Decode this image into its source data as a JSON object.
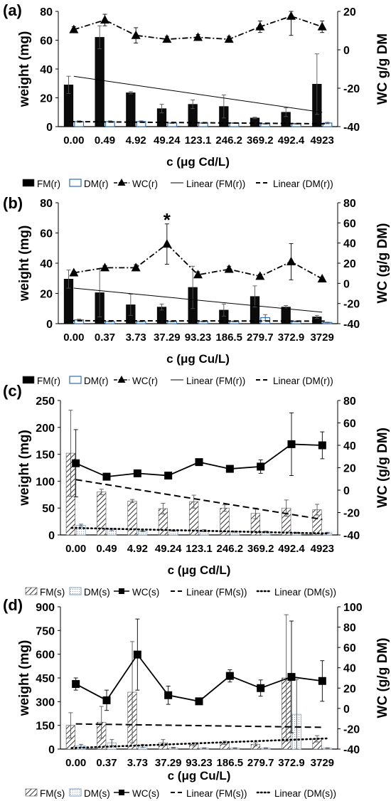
{
  "chart_data": [
    {
      "panel": "(a)",
      "type": "bar",
      "bar_style": "solid",
      "categories": [
        "0.00",
        "0.49",
        "4.92",
        "49.24",
        "123.1",
        "246.2",
        "369.2",
        "492.4",
        "4923"
      ],
      "xlabel": "c (μg Cd/L)",
      "ylabel": "weight (mg)",
      "y2label": "WC g/g DM",
      "ylim": [
        0,
        80
      ],
      "yticks": [
        0,
        20,
        40,
        60,
        80
      ],
      "y2lim": [
        -40,
        20
      ],
      "y2ticks": [
        -40,
        -20,
        0,
        20
      ],
      "series": [
        {
          "name": "FM(r)",
          "kind": "bar",
          "values": [
            29,
            62,
            23.5,
            12.5,
            15.5,
            14,
            6,
            10,
            29.5
          ],
          "err": [
            6,
            8,
            0.8,
            3,
            3,
            8,
            0.5,
            3,
            21
          ]
        },
        {
          "name": "DM(r)",
          "kind": "bar",
          "values": [
            3.5,
            3.5,
            3.5,
            2.5,
            2.5,
            2.5,
            2,
            2,
            2.5
          ],
          "err": [
            0.5,
            0.5,
            0.5,
            0.3,
            0.3,
            0.3,
            0.3,
            0.3,
            0.5
          ]
        },
        {
          "name": "WC(r)",
          "kind": "line",
          "axis": "y2",
          "values": [
            10.5,
            15.5,
            7.5,
            5.5,
            6.5,
            5.5,
            12,
            17.5,
            12
          ],
          "err": [
            1.5,
            3,
            4,
            1.5,
            1.5,
            1.5,
            3,
            10,
            3
          ]
        }
      ],
      "trendlines": [
        {
          "name": "Linear (FM(r))",
          "of": "FM(r)"
        },
        {
          "name": "Linear (DM(r))",
          "of": "DM(r)"
        }
      ],
      "legend": [
        "FM(r)",
        "DM(r)",
        "WC(r)",
        "Linear (FM(r))",
        "Linear (DM(r))"
      ],
      "annotations": []
    },
    {
      "panel": "(b)",
      "type": "bar",
      "bar_style": "solid",
      "categories": [
        "0.00",
        "0.37",
        "3.73",
        "37.29",
        "93.23",
        "186.5",
        "279.7",
        "372.9",
        "3729"
      ],
      "xlabel": "c (μg Cu/L)",
      "ylabel": "weight (mg)",
      "y2label": "WC (g/g DM)",
      "ylim": [
        0,
        80
      ],
      "yticks": [
        0,
        20,
        40,
        60,
        80
      ],
      "y2lim": [
        -40,
        80
      ],
      "y2ticks": [
        -40,
        -20,
        0,
        20,
        40,
        60,
        80
      ],
      "series": [
        {
          "name": "FM(r)",
          "kind": "bar",
          "values": [
            29.5,
            20.5,
            12.5,
            11,
            24,
            9,
            18,
            11,
            4.5
          ],
          "err": [
            6,
            16,
            7,
            2,
            14,
            4,
            7,
            1,
            1
          ]
        },
        {
          "name": "DM(r)",
          "kind": "bar",
          "values": [
            2.5,
            1.5,
            1.5,
            1.5,
            1.5,
            1.5,
            4,
            1.5,
            0.8
          ],
          "err": [
            0.5,
            0.3,
            0.3,
            0.3,
            0.3,
            0.3,
            2,
            0.3,
            0.2
          ]
        },
        {
          "name": "WC(r)",
          "kind": "line",
          "axis": "y2",
          "values": [
            10.5,
            15.5,
            15.5,
            39,
            8.5,
            14,
            7,
            21.5,
            4.5
          ],
          "err": [
            1.5,
            2,
            3,
            20,
            3,
            3,
            2,
            18,
            1
          ]
        }
      ],
      "trendlines": [
        {
          "name": "Linear (FM(r))",
          "of": "FM(r)"
        },
        {
          "name": "Linear (DM(r))",
          "of": "DM(r)"
        }
      ],
      "legend": [
        "FM(r)",
        "DM(r)",
        "WC(r)",
        "Linear (FM(r))",
        "Linear (DM(r))"
      ],
      "annotations": [
        {
          "text": "*",
          "category": "37.29"
        }
      ]
    },
    {
      "panel": "(c)",
      "type": "bar",
      "bar_style": "hatched",
      "categories": [
        "0.00",
        "0.49",
        "4.92",
        "49.24",
        "123.1",
        "246.2",
        "369.2",
        "492.4",
        "4923"
      ],
      "xlabel": "c (μg Cd/L)",
      "ylabel": "weight (mg)",
      "y2label": "WC (g/g DM)",
      "ylim": [
        0,
        250
      ],
      "yticks": [
        0,
        50,
        100,
        150,
        200,
        250
      ],
      "y2lim": [
        -40,
        80
      ],
      "y2ticks": [
        -40,
        -20,
        0,
        20,
        40,
        60,
        80
      ],
      "series": [
        {
          "name": "FM(s)",
          "kind": "bar",
          "values": [
            152,
            80,
            63,
            49,
            62,
            50,
            40,
            50,
            47
          ],
          "err": [
            80,
            5,
            3,
            10,
            12,
            6,
            10,
            15,
            10
          ]
        },
        {
          "name": "DM(s)",
          "kind": "bar",
          "values": [
            18,
            10,
            7,
            8,
            8,
            6,
            6,
            4,
            4
          ],
          "err": [
            2,
            2,
            1,
            1,
            2,
            1,
            1,
            1,
            1
          ]
        },
        {
          "name": "WC(s)",
          "kind": "line",
          "axis": "y2",
          "values": [
            24,
            12,
            15,
            13,
            25,
            19,
            21,
            41,
            40
          ],
          "err": [
            30,
            2,
            3,
            3,
            2,
            3,
            6,
            28,
            12
          ]
        }
      ],
      "trendlines": [
        {
          "name": "Linear (FM(s))",
          "of": "FM(s)"
        },
        {
          "name": "Linear (DM(s))",
          "of": "DM(s)"
        }
      ],
      "legend": [
        "FM(s)",
        "DM(s)",
        "WC(s)",
        "Linear (FM(s))",
        "Linear (DM(s))"
      ],
      "annotations": []
    },
    {
      "panel": "(d)",
      "type": "bar",
      "bar_style": "hatched",
      "categories": [
        "0.00",
        "0.37",
        "3.73",
        "37.29",
        "93.23",
        "186.5",
        "279.7",
        "372.9",
        "3729"
      ],
      "xlabel": "c (μg Cu/L)",
      "ylabel": "weight (mg)",
      "y2label": "WC (g/g DM)",
      "ylim": [
        0,
        900
      ],
      "yticks": [
        0,
        150,
        300,
        450,
        600,
        750,
        900
      ],
      "y2lim": [
        -40,
        100
      ],
      "y2ticks": [
        -40,
        -20,
        0,
        20,
        40,
        60,
        80,
        100
      ],
      "series": [
        {
          "name": "FM(s)",
          "kind": "bar",
          "values": [
            150,
            170,
            360,
            40,
            30,
            40,
            30,
            450,
            65
          ],
          "err": [
            80,
            100,
            320,
            20,
            10,
            10,
            10,
            400,
            20
          ]
        },
        {
          "name": "DM(s)",
          "kind": "bar",
          "values": [
            20,
            40,
            20,
            8,
            6,
            6,
            6,
            220,
            6
          ],
          "err": [
            10,
            20,
            10,
            3,
            2,
            2,
            2,
            220,
            2
          ]
        },
        {
          "name": "WC(s)",
          "kind": "line",
          "axis": "y2",
          "values": [
            24,
            8,
            53,
            13,
            7,
            32,
            20,
            31,
            27
          ],
          "err": [
            6,
            10,
            35,
            9,
            2,
            6,
            8,
            55,
            20
          ]
        }
      ],
      "trendlines": [
        {
          "name": "Linear (FM(s))",
          "of": "FM(s)"
        },
        {
          "name": "Linear (DM(s))",
          "of": "DM(s)"
        }
      ],
      "legend": [
        "FM(s)",
        "DM(s)",
        "WC(s)",
        "Linear (FM(s))",
        "Linear (DM(s))"
      ],
      "annotations": []
    }
  ]
}
